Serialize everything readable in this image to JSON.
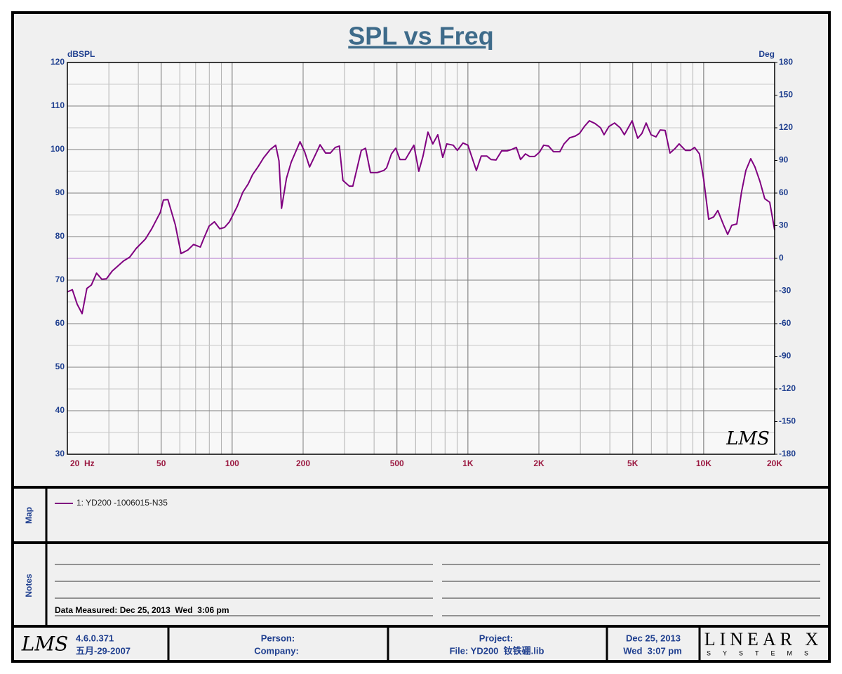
{
  "chart_data": {
    "type": "line",
    "title": "SPL vs Freq",
    "ylabel": "dBSPL",
    "y2label": "Deg",
    "xscale": "log",
    "grid": true,
    "minor_grid": true,
    "xlim": [
      20,
      20000
    ],
    "ylim": [
      30,
      120
    ],
    "y2lim": [
      -180,
      180
    ],
    "xticks": [
      {
        "value": 20,
        "label": "20  Hz"
      },
      50,
      100,
      200,
      500,
      {
        "value": 1000,
        "label": "1K"
      },
      {
        "value": 2000,
        "label": "2K"
      },
      {
        "value": 5000,
        "label": "5K"
      },
      {
        "value": 10000,
        "label": "10K"
      },
      {
        "value": 20000,
        "label": "20K"
      }
    ],
    "yticks": [
      30,
      40,
      50,
      60,
      70,
      80,
      90,
      100,
      110,
      120
    ],
    "y2ticks": [
      -180,
      -150,
      -120,
      -90,
      -60,
      -30,
      0,
      30,
      60,
      90,
      120,
      150,
      180
    ],
    "reference_lines": [
      {
        "axis": "y2",
        "value": 0,
        "color": "#c9a0dc"
      }
    ],
    "x": [
      20,
      21,
      22,
      23.1,
      24.2,
      25.3,
      26.6,
      28,
      29.3,
      31,
      32.7,
      34.6,
      36.8,
      39.2,
      42.8,
      45.6,
      49.6,
      51.1,
      53.4,
      57.4,
      60.7,
      64.8,
      68.6,
      73.3,
      75.7,
      79.8,
      84.1,
      88.6,
      92.8,
      97.4,
      105,
      111,
      117,
      122,
      129,
      136,
      145,
      153,
      158,
      162,
      170,
      178,
      194,
      203,
      213,
      225,
      236,
      249,
      261,
      274,
      285,
      295,
      314,
      325,
      353,
      368,
      386,
      413,
      440,
      452,
      474,
      494,
      515,
      543,
      590,
      619,
      645,
      677,
      710,
      745,
      782,
      814,
      866,
      902,
      953,
      1000,
      1086,
      1139,
      1203,
      1254,
      1316,
      1390,
      1468,
      1529,
      1605,
      1672,
      1754,
      1828,
      1918,
      2012,
      2096,
      2199,
      2307,
      2454,
      2557,
      2701,
      2854,
      2974,
      3119,
      3273,
      3457,
      3652,
      3780,
      3966,
      4188,
      4424,
      4610,
      4971,
      5252,
      5472,
      5702,
      5983,
      6277,
      6541,
      6862,
      7196,
      7551,
      7868,
      8368,
      8777,
      9148,
      9597,
      10000,
      10500,
      11020,
      11480,
      12140,
      12640,
      13160,
      13820,
      14480,
      15100,
      15840,
      16500,
      17320,
      18160,
      19060,
      20000
    ],
    "series": [
      {
        "name": "1: YD200 -1006015-N35",
        "color": "#800080",
        "values": [
          67.3,
          67.8,
          64.5,
          62.3,
          68.1,
          68.9,
          71.6,
          70.2,
          70.3,
          72.1,
          73.2,
          74.4,
          75.3,
          77.3,
          79.4,
          81.8,
          85.6,
          88.4,
          88.5,
          82.7,
          76.1,
          76.9,
          78.2,
          77.6,
          79.5,
          82.4,
          83.4,
          81.8,
          82.1,
          83.4,
          86.9,
          90.2,
          92.1,
          94.2,
          96.1,
          98.1,
          100,
          101,
          97.4,
          86.5,
          93.4,
          97.1,
          101.8,
          99.5,
          96,
          98.7,
          101.1,
          99.2,
          99.2,
          100.5,
          100.8,
          92.9,
          91.6,
          91.6,
          99.8,
          100.3,
          94.7,
          94.7,
          95.2,
          95.8,
          99,
          100.3,
          97.7,
          97.7,
          101,
          95,
          98.5,
          104,
          101.3,
          103.4,
          98.2,
          101.3,
          101,
          99.8,
          101.5,
          101,
          95.2,
          98.5,
          98.5,
          97.7,
          97.6,
          99.7,
          99.7,
          100,
          100.5,
          97.7,
          99,
          98.4,
          98.4,
          99.4,
          101,
          100.8,
          99.5,
          99.5,
          101.3,
          102.7,
          103.1,
          103.7,
          105.3,
          106.6,
          106,
          105,
          103.4,
          105.3,
          106.1,
          105,
          103.4,
          106.6,
          102.6,
          103.7,
          106.1,
          103.4,
          102.9,
          104.5,
          104.4,
          99.2,
          100.2,
          101.3,
          99.8,
          99.8,
          100.5,
          99,
          93.2,
          84,
          84.5,
          86,
          82.7,
          80.5,
          82.6,
          82.9,
          90.3,
          95.2,
          97.9,
          96,
          92.7,
          88.7,
          87.9,
          81.5
        ]
      }
    ]
  },
  "watermark": "LMS",
  "map": {
    "label": "Map"
  },
  "notes": {
    "label": "Notes",
    "measured": "Data Measured: Dec 25, 2013  Wed  3:06 pm"
  },
  "footer": {
    "logo": "LMS",
    "version": "4.6.0.371",
    "build_date": "五月-29-2007",
    "person": "Person:",
    "company": "Company:",
    "project": "Project:",
    "file": "File: YD200  钕铁硼.lib",
    "date": "Dec 25, 2013",
    "time": "Wed  3:07 pm",
    "brand": "LINEAR X",
    "brand_sub": "SYSTEMS"
  }
}
